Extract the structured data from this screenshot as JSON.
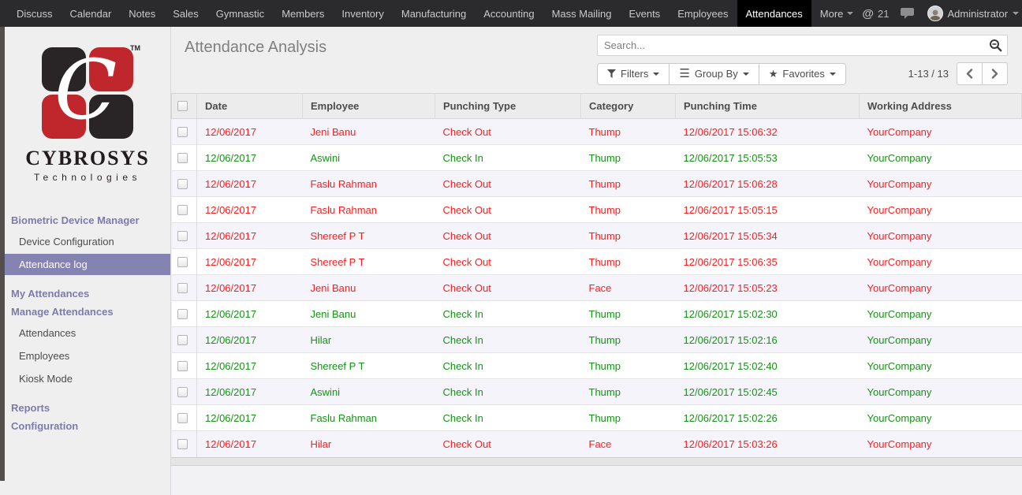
{
  "colors": {
    "check_out_red": "#fb1d1d",
    "check_in_green": "#169216",
    "sidebar_purple": "#7c7bad",
    "active_sidebar_bg": "#8583b1",
    "logo_red": "#c0272d",
    "logo_black": "#292425",
    "topbar_bg": "#2b2b2e"
  },
  "topbar": {
    "menu": [
      {
        "label": "Discuss"
      },
      {
        "label": "Calendar"
      },
      {
        "label": "Notes"
      },
      {
        "label": "Sales"
      },
      {
        "label": "Gymnastic"
      },
      {
        "label": "Members"
      },
      {
        "label": "Inventory"
      },
      {
        "label": "Manufacturing"
      },
      {
        "label": "Accounting"
      },
      {
        "label": "Mass Mailing"
      },
      {
        "label": "Events"
      },
      {
        "label": "Employees"
      },
      {
        "label": "Attendances",
        "active": true
      },
      {
        "label": "More",
        "caret": true
      }
    ],
    "mentions_symbol": "@",
    "mentions_count": "21",
    "user_name": "Administrator"
  },
  "sidebar": {
    "logo": {
      "monogram": "C",
      "tm": "TM",
      "brand": "CYBROSYS",
      "sub_brand": "Technologies"
    },
    "menu": [
      {
        "type": "heading",
        "label": "Biometric Device Manager"
      },
      {
        "type": "item",
        "label": "Device Configuration"
      },
      {
        "type": "item",
        "label": "Attendance log",
        "active": true
      },
      {
        "type": "heading",
        "label": "My Attendances"
      },
      {
        "type": "heading",
        "label": "Manage Attendances"
      },
      {
        "type": "item",
        "label": "Attendances"
      },
      {
        "type": "item",
        "label": "Employees"
      },
      {
        "type": "item",
        "label": "Kiosk Mode"
      },
      {
        "type": "heading",
        "label": "Reports"
      },
      {
        "type": "heading",
        "label": "Configuration"
      }
    ]
  },
  "control_panel": {
    "title": "Attendance Analysis",
    "search_placeholder": "Search...",
    "buttons": [
      {
        "label": "Filters"
      },
      {
        "label": "Group By"
      },
      {
        "label": "Favorites"
      }
    ],
    "pager_range": "1-13 / 13"
  },
  "table": {
    "columns": [
      "Date",
      "Employee",
      "Punching Type",
      "Category",
      "Punching Time",
      "Working Address"
    ],
    "rows": [
      {
        "date": "12/06/2017",
        "employee": "Jeni Banu",
        "punching_type": "Check Out",
        "category": "Thump",
        "punching_time": "12/06/2017 15:06:32",
        "working_address": "YourCompany",
        "status": "check-out"
      },
      {
        "date": "12/06/2017",
        "employee": "Aswini",
        "punching_type": "Check In",
        "category": "Thump",
        "punching_time": "12/06/2017 15:05:53",
        "working_address": "YourCompany",
        "status": "check-in"
      },
      {
        "date": "12/06/2017",
        "employee": "Faslu Rahman",
        "punching_type": "Check Out",
        "category": "Thump",
        "punching_time": "12/06/2017 15:06:28",
        "working_address": "YourCompany",
        "status": "check-out"
      },
      {
        "date": "12/06/2017",
        "employee": "Faslu Rahman",
        "punching_type": "Check Out",
        "category": "Thump",
        "punching_time": "12/06/2017 15:05:15",
        "working_address": "YourCompany",
        "status": "check-out"
      },
      {
        "date": "12/06/2017",
        "employee": "Shereef P T",
        "punching_type": "Check Out",
        "category": "Thump",
        "punching_time": "12/06/2017 15:05:34",
        "working_address": "YourCompany",
        "status": "check-out"
      },
      {
        "date": "12/06/2017",
        "employee": "Shereef P T",
        "punching_type": "Check Out",
        "category": "Thump",
        "punching_time": "12/06/2017 15:06:35",
        "working_address": "YourCompany",
        "status": "check-out"
      },
      {
        "date": "12/06/2017",
        "employee": "Jeni Banu",
        "punching_type": "Check Out",
        "category": "Face",
        "punching_time": "12/06/2017 15:05:23",
        "working_address": "YourCompany",
        "status": "check-out"
      },
      {
        "date": "12/06/2017",
        "employee": "Jeni Banu",
        "punching_type": "Check In",
        "category": "Thump",
        "punching_time": "12/06/2017 15:02:30",
        "working_address": "YourCompany",
        "status": "check-in"
      },
      {
        "date": "12/06/2017",
        "employee": "Hilar",
        "punching_type": "Check In",
        "category": "Thump",
        "punching_time": "12/06/2017 15:02:16",
        "working_address": "YourCompany",
        "status": "check-in"
      },
      {
        "date": "12/06/2017",
        "employee": "Shereef P T",
        "punching_type": "Check In",
        "category": "Thump",
        "punching_time": "12/06/2017 15:02:40",
        "working_address": "YourCompany",
        "status": "check-in"
      },
      {
        "date": "12/06/2017",
        "employee": "Aswini",
        "punching_type": "Check In",
        "category": "Thump",
        "punching_time": "12/06/2017 15:02:45",
        "working_address": "YourCompany",
        "status": "check-in"
      },
      {
        "date": "12/06/2017",
        "employee": "Faslu Rahman",
        "punching_type": "Check In",
        "category": "Thump",
        "punching_time": "12/06/2017 15:02:26",
        "working_address": "YourCompany",
        "status": "check-in"
      },
      {
        "date": "12/06/2017",
        "employee": "Hilar",
        "punching_type": "Check Out",
        "category": "Face",
        "punching_time": "12/06/2017 15:03:26",
        "working_address": "YourCompany",
        "status": "check-out"
      }
    ]
  }
}
